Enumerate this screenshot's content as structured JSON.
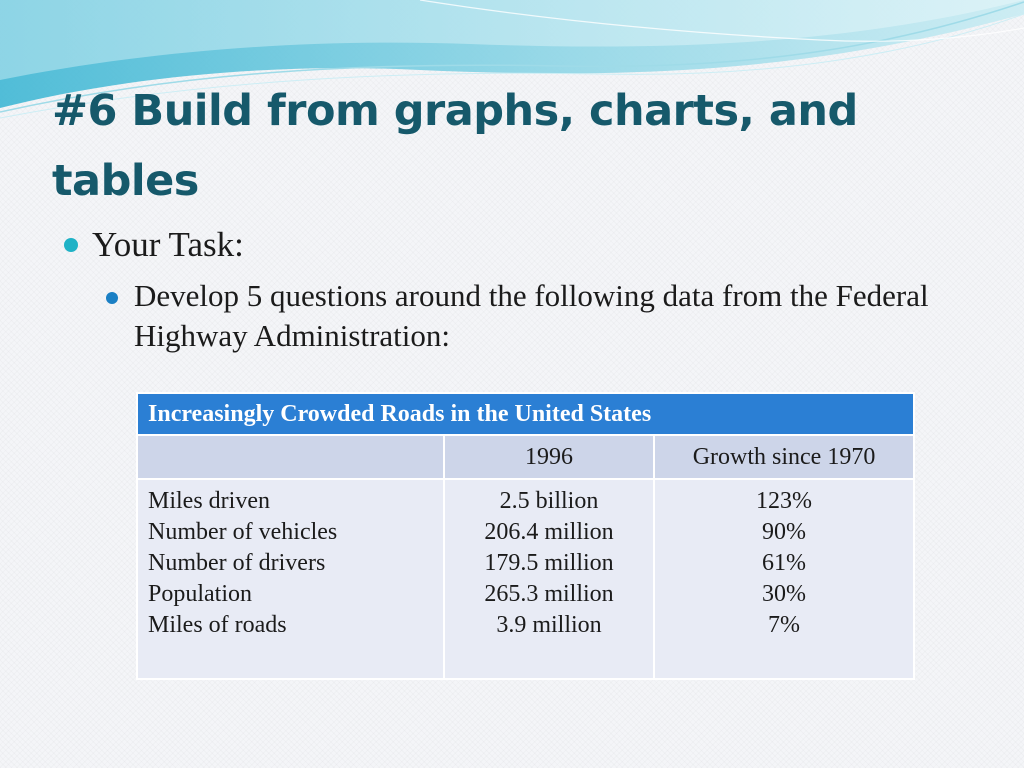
{
  "slide": {
    "title": "#6  Build from graphs, charts, and tables",
    "bullets": {
      "level1": "Your Task:",
      "level2": "Develop 5 questions around the following data from the Federal Highway Administration:"
    }
  },
  "table": {
    "title": "Increasingly Crowded Roads in the United States",
    "headers": [
      "",
      "1996",
      "Growth since 1970"
    ],
    "rows": [
      {
        "label": "Miles driven",
        "value_1996": "2.5 billion",
        "growth": "123%"
      },
      {
        "label": "Number of vehicles",
        "value_1996": "206.4 million",
        "growth": "90%"
      },
      {
        "label": "Number of drivers",
        "value_1996": "179.5 million",
        "growth": "61%"
      },
      {
        "label": "Population",
        "value_1996": "265.3 million",
        "growth": "30%"
      },
      {
        "label": "Miles of roads",
        "value_1996": "3.9 million",
        "growth": "7%"
      }
    ]
  },
  "colors": {
    "title": "#16596b",
    "accent_teal": "#1fb2c6",
    "accent_blue": "#1a7fc4",
    "table_header": "#2b7fd4",
    "table_subheader": "#cdd5e9",
    "table_body": "#e8ebf5"
  }
}
